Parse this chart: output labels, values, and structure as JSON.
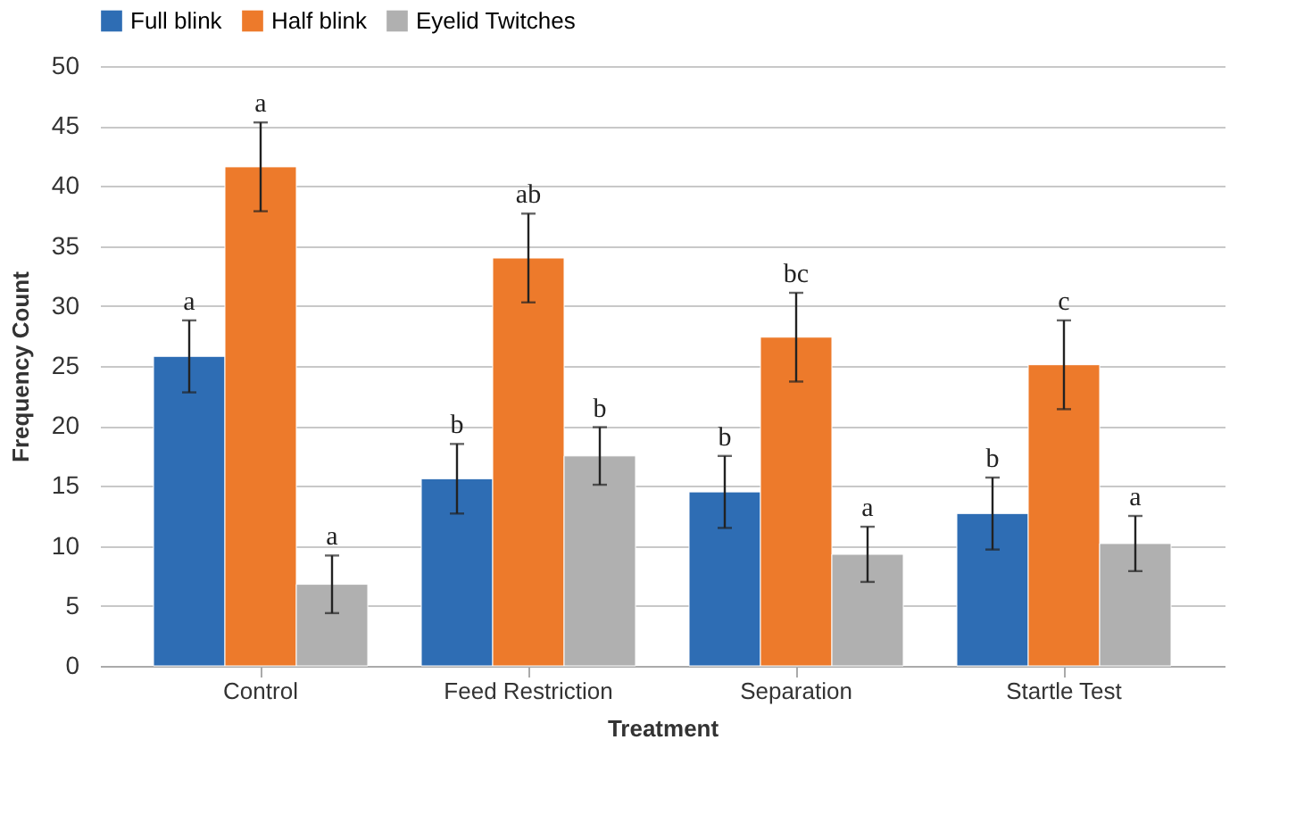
{
  "chart_data": {
    "type": "bar",
    "xlabel": "Treatment",
    "ylabel": "Frequency Count",
    "categories": [
      "Control",
      "Feed Restriction",
      "Separation",
      "Startle Test"
    ],
    "series": [
      {
        "name": "Full blink",
        "color": "#2e6db4",
        "values": [
          25.8,
          15.6,
          14.5,
          12.7
        ],
        "errors": [
          3.0,
          2.9,
          3.0,
          3.0
        ]
      },
      {
        "name": "Half blink",
        "color": "#ed7a2b",
        "values": [
          41.6,
          34.0,
          27.4,
          25.1
        ],
        "errors": [
          3.7,
          3.7,
          3.7,
          3.7
        ]
      },
      {
        "name": "Eyelid Twitches",
        "color": "#b0b0b0",
        "values": [
          6.8,
          17.5,
          9.3,
          10.2
        ],
        "errors": [
          2.4,
          2.4,
          2.3,
          2.3
        ]
      }
    ],
    "annotations": [
      "a",
      "a",
      "a",
      "b",
      "ab",
      "b",
      "b",
      "bc",
      "a",
      "b",
      "c",
      "a"
    ],
    "ylim": [
      0,
      50
    ],
    "yticks": [
      0,
      5,
      10,
      15,
      20,
      25,
      30,
      35,
      40,
      45,
      50
    ],
    "grid": "y",
    "legend": "top"
  }
}
